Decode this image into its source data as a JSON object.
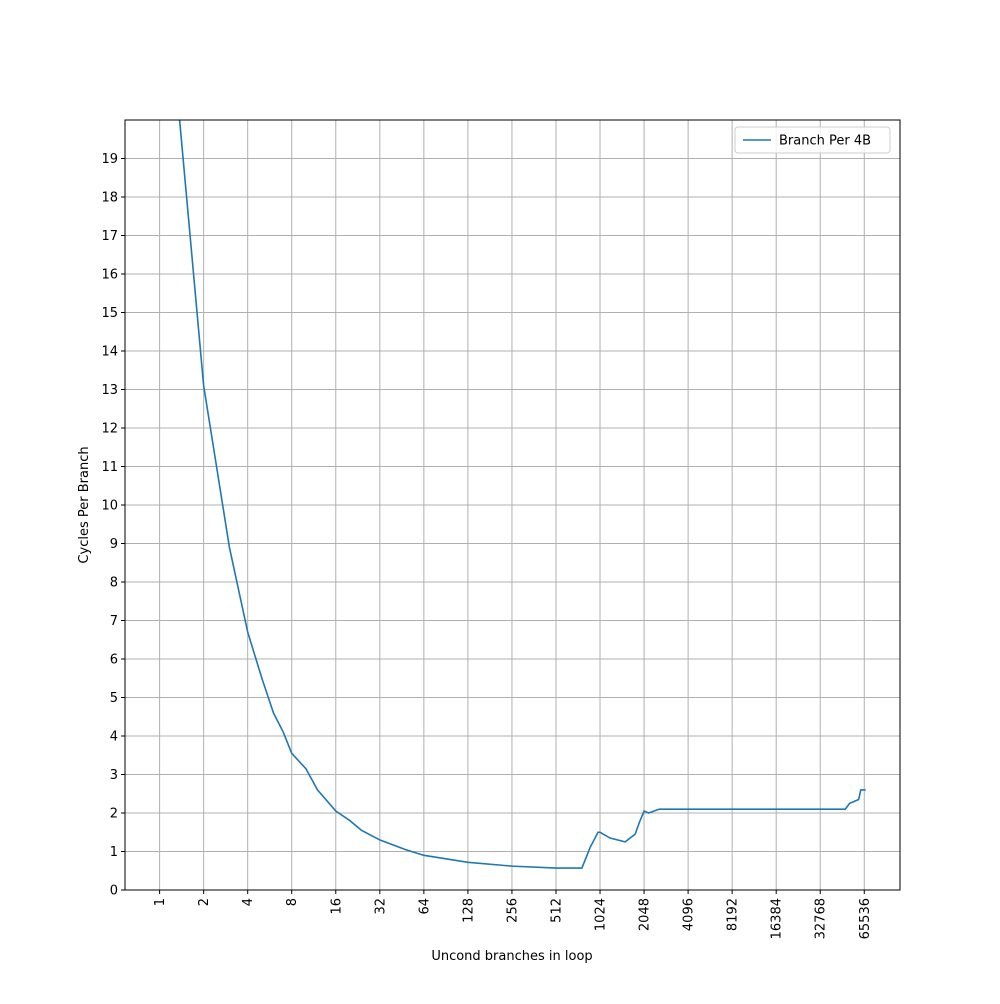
{
  "chart_data": {
    "type": "line",
    "xlabel": "Uncond branches in loop",
    "ylabel": "Cycles Per Branch",
    "xscale": "log",
    "xbase": 2,
    "xlim": [
      0.58,
      115000
    ],
    "ylim": [
      0,
      20
    ],
    "xticks": [
      1,
      2,
      4,
      8,
      16,
      32,
      64,
      128,
      256,
      512,
      1024,
      2048,
      4096,
      8192,
      16384,
      32768,
      65536
    ],
    "yticks": [
      0,
      1,
      2,
      3,
      4,
      5,
      6,
      7,
      8,
      9,
      10,
      11,
      12,
      13,
      14,
      15,
      16,
      17,
      18,
      19
    ],
    "grid": true,
    "legend": "upper right",
    "series": [
      {
        "name": "Branch Per 4B",
        "color": "#1f77b4",
        "x": [
          1.37,
          2,
          3,
          4,
          5,
          6,
          7,
          8,
          10,
          12,
          16,
          20,
          24,
          32,
          48,
          64,
          128,
          256,
          512,
          770,
          875,
          992,
          1024,
          1200,
          1520,
          1780,
          1900,
          2048,
          2200,
          2600,
          4096,
          8192,
          16384,
          32768,
          48600,
          52000,
          60000,
          62000,
          67000
        ],
        "values": [
          20,
          13.1,
          8.9,
          6.7,
          5.5,
          4.6,
          4.1,
          3.55,
          3.15,
          2.6,
          2.05,
          1.8,
          1.55,
          1.3,
          1.05,
          0.9,
          0.72,
          0.62,
          0.57,
          0.57,
          1.1,
          1.5,
          1.5,
          1.35,
          1.25,
          1.45,
          1.75,
          2.05,
          2.0,
          2.1,
          2.1,
          2.1,
          2.1,
          2.1,
          2.1,
          2.25,
          2.35,
          2.6,
          2.6
        ]
      }
    ]
  }
}
